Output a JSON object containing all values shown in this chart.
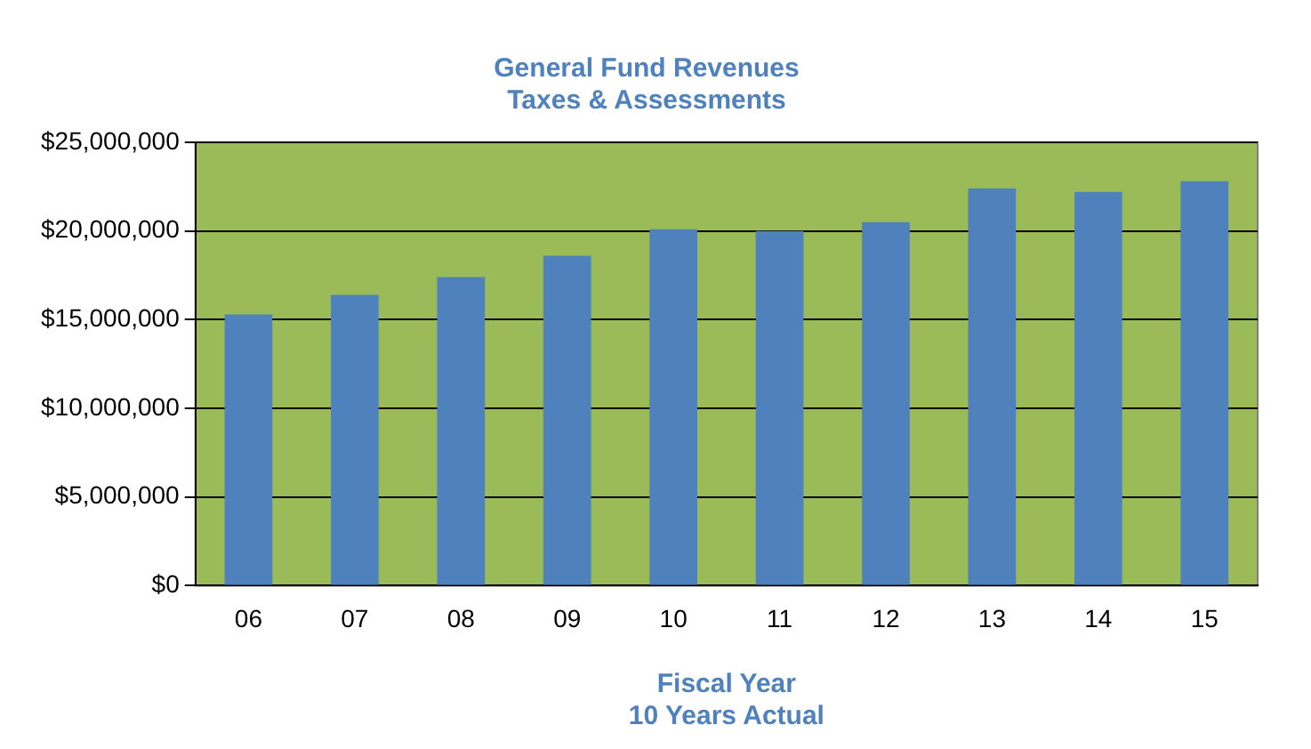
{
  "chart_data": {
    "type": "bar",
    "title": "General Fund Revenues\nTaxes & Assessments",
    "xlabel": "Fiscal Year\n10 Years Actual",
    "categories": [
      "06",
      "07",
      "08",
      "09",
      "10",
      "11",
      "12",
      "13",
      "14",
      "15"
    ],
    "values": [
      15300000,
      16400000,
      17400000,
      18600000,
      20100000,
      20000000,
      20500000,
      22400000,
      22200000,
      22800000
    ],
    "color": "#4f81bd",
    "ylim": [
      0,
      25000000
    ],
    "yticks": [
      {
        "value": 0,
        "label": "$0"
      },
      {
        "value": 5000000,
        "label": "$5,000,000"
      },
      {
        "value": 10000000,
        "label": "$10,000,000"
      },
      {
        "value": 15000000,
        "label": "$15,000,000"
      },
      {
        "value": 20000000,
        "label": "$20,000,000"
      },
      {
        "value": 25000000,
        "label": "$25,000,000"
      }
    ],
    "grid": "y",
    "legend": false
  }
}
